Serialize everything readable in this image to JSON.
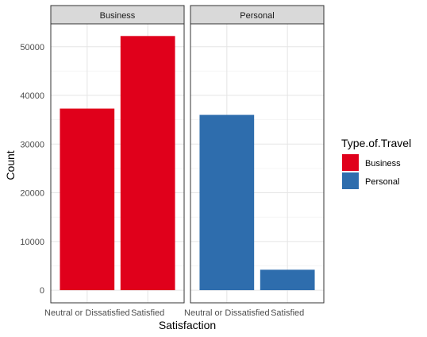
{
  "chart_data": {
    "type": "bar",
    "xlabel": "Satisfaction",
    "ylabel": "Count",
    "ylim": [
      -2600,
      54700
    ],
    "yticks": [
      0,
      10000,
      20000,
      30000,
      40000,
      50000
    ],
    "ytick_labels": [
      "0",
      "10000",
      "20000",
      "30000",
      "40000",
      "50000"
    ],
    "categories": [
      "Neutral or Dissatisfied",
      "Satisfied"
    ],
    "grid": true,
    "facets": [
      {
        "label": "Business",
        "fill": "Business",
        "values": [
          37300,
          52200
        ]
      },
      {
        "label": "Personal",
        "fill": "Personal",
        "values": [
          36000,
          4200
        ]
      }
    ],
    "legend": {
      "title": "Type.of.Travel",
      "position": "right",
      "entries": [
        {
          "label": "Business",
          "color": "#E0001B"
        },
        {
          "label": "Personal",
          "color": "#2E6DAD"
        }
      ]
    }
  }
}
